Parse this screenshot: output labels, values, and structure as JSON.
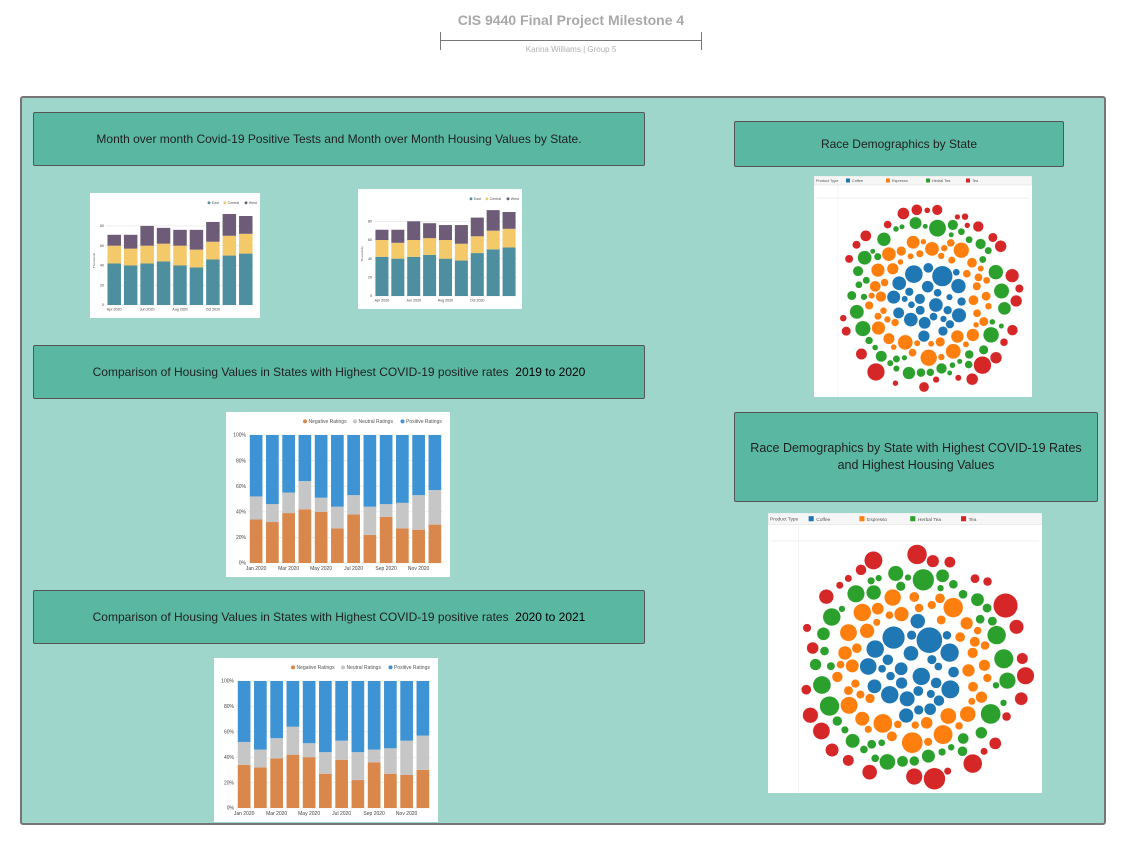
{
  "page": {
    "title": "CIS 9440 Final Project Milestone 4",
    "subtitle": "Karina Williams | Group 5"
  },
  "headers": {
    "mom": "Month over month Covid-19 Positive Tests and Month over Month Housing Values by State.",
    "cmp1_text": "Comparison of Housing Values in States with Highest COVID-19 positive rates",
    "cmp1_years": "2019 to 2020",
    "cmp2_text": "Comparison of Housing Values in States with Highest COVID-19 positive rates",
    "cmp2_years": "2020 to 2021",
    "race": "Race Demographics by State",
    "race_high": "Race Demographics by State with Highest COVID-19 Rates and Highest Housing Values"
  },
  "colors": {
    "board": "#9fd6cb",
    "header": "#5ab8a2",
    "east": "#4e8f9f",
    "central": "#f3c969",
    "west": "#6d5b78",
    "negative": "#d9874b",
    "neutral": "#c6c6c6",
    "positive": "#3d93d3",
    "coffee": "#1f77b4",
    "espresso": "#ff7f0e",
    "herbal": "#2ca02c",
    "tea": "#d62728"
  },
  "chart_data": [
    {
      "type": "bar",
      "stacked": true,
      "ylabel": "Thousands",
      "y_ticks": [
        "0",
        "20",
        "40",
        "60",
        "80"
      ],
      "categories": [
        "Apr 2020",
        "May 2020",
        "Jun 2020",
        "Jul 2020",
        "Aug 2020",
        "Sep 2020",
        "Oct 2020",
        "Nov 2020",
        "Dec 2020"
      ],
      "x_tick_labels": [
        "Apr 2020",
        "Jun 2020",
        "Aug 2020",
        "Oct 2020"
      ],
      "series": [
        {
          "name": "East",
          "values": [
            42,
            40,
            42,
            44,
            40,
            38,
            46,
            50,
            52
          ]
        },
        {
          "name": "Central",
          "values": [
            18,
            17,
            18,
            18,
            20,
            18,
            18,
            20,
            20
          ]
        },
        {
          "name": "West",
          "values": [
            11,
            14,
            20,
            16,
            16,
            20,
            20,
            22,
            18
          ]
        }
      ],
      "ylim": [
        0,
        90
      ],
      "legend": "top-right"
    },
    {
      "type": "bar",
      "stacked": true,
      "ylabel": "Thousands",
      "y_ticks": [
        "0",
        "20",
        "40",
        "60",
        "80"
      ],
      "categories": [
        "Apr 2020",
        "May 2020",
        "Jun 2020",
        "Jul 2020",
        "Aug 2020",
        "Sep 2020",
        "Oct 2020",
        "Nov 2020",
        "Dec 2020"
      ],
      "x_tick_labels": [
        "Apr 2020",
        "Jun 2020",
        "Aug 2020",
        "Oct 2020"
      ],
      "series": [
        {
          "name": "East",
          "values": [
            42,
            40,
            42,
            44,
            40,
            38,
            46,
            50,
            52
          ]
        },
        {
          "name": "Central",
          "values": [
            18,
            17,
            18,
            18,
            20,
            18,
            18,
            20,
            20
          ]
        },
        {
          "name": "West",
          "values": [
            11,
            14,
            20,
            16,
            16,
            20,
            20,
            22,
            18
          ]
        }
      ],
      "ylim": [
        0,
        90
      ],
      "legend": "top-right"
    },
    {
      "type": "bar",
      "stacked": true,
      "percent": true,
      "y_ticks": [
        "0%",
        "20%",
        "40%",
        "60%",
        "80%",
        "100%"
      ],
      "categories": [
        "Jan 2020",
        "Feb 2020",
        "Mar 2020",
        "Apr 2020",
        "May 2020",
        "Jun 2020",
        "Jul 2020",
        "Aug 2020",
        "Sep 2020",
        "Oct 2020",
        "Nov 2020",
        "Dec 2020"
      ],
      "x_tick_labels": [
        "Jan 2020",
        "Mar 2020",
        "May 2020",
        "Jul 2020",
        "Sep 2020",
        "Nov 2020"
      ],
      "series": [
        {
          "name": "Negative Ratings",
          "values": [
            34,
            32,
            39,
            42,
            40,
            27,
            38,
            22,
            36,
            27,
            26,
            30
          ]
        },
        {
          "name": "Neutral Ratings",
          "values": [
            18,
            14,
            16,
            22,
            11,
            17,
            15,
            22,
            10,
            20,
            27,
            27
          ]
        },
        {
          "name": "Positive Ratings",
          "values": [
            48,
            54,
            45,
            36,
            49,
            56,
            47,
            56,
            54,
            53,
            47,
            43
          ]
        }
      ],
      "ylim": [
        0,
        100
      ],
      "legend": "top-right"
    },
    {
      "type": "bar",
      "stacked": true,
      "percent": true,
      "y_ticks": [
        "0%",
        "20%",
        "40%",
        "60%",
        "80%",
        "100%"
      ],
      "categories": [
        "Jan 2020",
        "Feb 2020",
        "Mar 2020",
        "Apr 2020",
        "May 2020",
        "Jun 2020",
        "Jul 2020",
        "Aug 2020",
        "Sep 2020",
        "Oct 2020",
        "Nov 2020",
        "Dec 2020"
      ],
      "x_tick_labels": [
        "Jan 2020",
        "Mar 2020",
        "May 2020",
        "Jul 2020",
        "Sep 2020",
        "Nov 2020"
      ],
      "series": [
        {
          "name": "Negative Ratings",
          "values": [
            34,
            32,
            39,
            42,
            40,
            27,
            38,
            22,
            36,
            27,
            26,
            30
          ]
        },
        {
          "name": "Neutral Ratings",
          "values": [
            18,
            14,
            16,
            22,
            11,
            17,
            15,
            22,
            10,
            20,
            27,
            27
          ]
        },
        {
          "name": "Positive Ratings",
          "values": [
            48,
            54,
            45,
            36,
            49,
            56,
            47,
            56,
            54,
            53,
            47,
            43
          ]
        }
      ],
      "ylim": [
        0,
        100
      ],
      "legend": "top-right"
    }
  ],
  "bubble_legend": {
    "field": "Product Type",
    "items": [
      "Coffee",
      "Espresso",
      "Herbal Tea",
      "Tea"
    ]
  }
}
